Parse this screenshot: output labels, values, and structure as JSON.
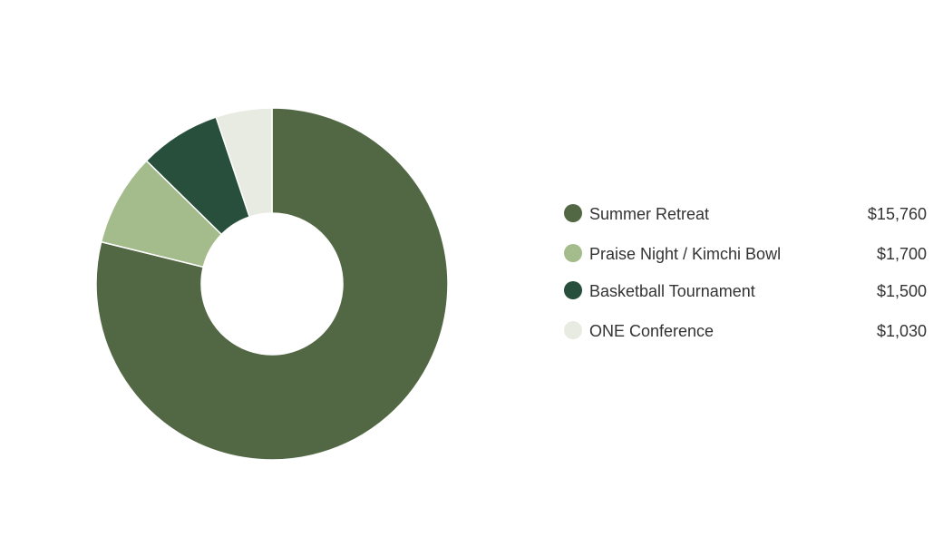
{
  "chart_data": {
    "type": "pie",
    "donut": true,
    "categories": [
      "Summer Retreat",
      "Praise Night / Kimchi Bowl",
      "Basketball Tournament",
      "ONE Conference"
    ],
    "values": [
      15760,
      1700,
      1500,
      1030
    ],
    "value_labels": [
      "$15,760",
      "$1,700",
      "$1,500",
      "$1,030"
    ],
    "colors": [
      "#526744",
      "#a4bb8c",
      "#274f3b",
      "#e8ebe2"
    ],
    "legend_position": "right"
  }
}
